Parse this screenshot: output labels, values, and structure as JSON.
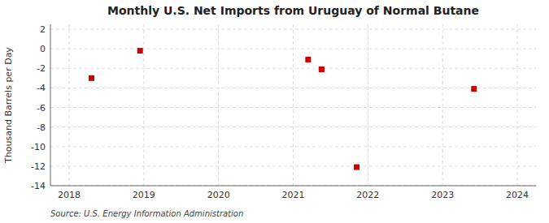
{
  "chart_data": {
    "type": "scatter",
    "title": "Monthly U.S. Net Imports from Uruguay of Normal Butane",
    "y_label": "Thousand Barrels per Day",
    "annotations": [
      "Source: U.S. Energy Information Administration"
    ],
    "x": [
      2018.3,
      2018.95,
      2021.2,
      2021.38,
      2021.85,
      2023.42
    ],
    "values": [
      -3.0,
      -0.2,
      -1.1,
      -2.1,
      -12.1,
      -4.1
    ],
    "color": "#cc0000",
    "marker": "square",
    "xlim": [
      2017.75,
      2024.25
    ],
    "ylim": [
      -14,
      2.5
    ],
    "xticks": [
      2018,
      2019,
      2020,
      2021,
      2022,
      2023,
      2024
    ],
    "yticks": [
      2,
      0,
      -2,
      -4,
      -6,
      -8,
      -10,
      -12,
      -14
    ],
    "grid": true
  }
}
